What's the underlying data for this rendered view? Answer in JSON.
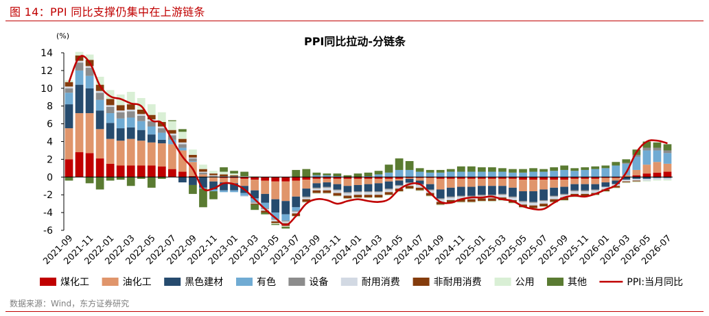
{
  "figure": {
    "label": "图 14：PPI 同比支撑仍集中在上游链条",
    "source": "数据来源：Wind，东方证券研究"
  },
  "chart_data": {
    "type": "bar",
    "title": "PPI同比拉动-分链条",
    "ylabel": "(%)",
    "ylim": [
      -6,
      14
    ],
    "yticks": [
      -6,
      -4,
      -2,
      0,
      2,
      4,
      6,
      8,
      10,
      12,
      14
    ],
    "grid": false,
    "legend_position": "bottom",
    "stacked": true,
    "categories": [
      "2021-09",
      "2021-10",
      "2021-11",
      "2021-12",
      "2022-01",
      "2022-02",
      "2022-03",
      "2022-04",
      "2022-05",
      "2022-06",
      "2022-07",
      "2022-08",
      "2022-09",
      "2022-10",
      "2022-11",
      "2022-12",
      "2023-01",
      "2023-02",
      "2023-03",
      "2023-04",
      "2023-05",
      "2023-06",
      "2023-07",
      "2023-08",
      "2023-09",
      "2023-10",
      "2023-11",
      "2023-12",
      "2024-01",
      "2024-02",
      "2024-03",
      "2024-04",
      "2024-05",
      "2024-06",
      "2024-07",
      "2024-08",
      "2024-09",
      "2024-10",
      "2024-11",
      "2024-12",
      "2025-01",
      "2025-02",
      "2025-03",
      "2025-04",
      "2025-05",
      "2025-06",
      "2025-07",
      "2025-08",
      "2025-09",
      "2025-10",
      "2025-11",
      "2025-12",
      "2026-01",
      "2026-02",
      "2026-03",
      "2026-04",
      "2026-05",
      "2026-06",
      "2026-07"
    ],
    "xtick_labels": [
      "2021-09",
      "2021-11",
      "2022-01",
      "2022-03",
      "2022-05",
      "2022-07",
      "2022-09",
      "2022-11",
      "2023-01",
      "2023-03",
      "2023-05",
      "2023-07",
      "2023-09",
      "2023-11",
      "2024-01",
      "2024-03",
      "2024-05",
      "2024-07",
      "2024-09",
      "2024-11",
      "2025-01",
      "2025-03",
      "2025-05",
      "2025-07",
      "2025-09",
      "2025-11",
      "2026-01",
      "2026-03",
      "2026-05",
      "2026-07"
    ],
    "colors": {
      "煤化工": "#c00000",
      "油化工": "#e0956b",
      "黑色建材": "#264b6e",
      "有色": "#70abd3",
      "设备": "#8c8c8c",
      "耐用消费": "#d2d9e3",
      "非耐用消费": "#843c0c",
      "公用": "#d9efd5",
      "其他": "#5a7b32",
      "PPI:当月同比": "#c00000"
    },
    "series": [
      {
        "name": "煤化工",
        "values": [
          2.0,
          2.8,
          2.7,
          2.1,
          1.5,
          1.3,
          1.3,
          1.3,
          1.3,
          1.2,
          0.9,
          0.6,
          0.1,
          0.0,
          0.0,
          -0.1,
          -0.1,
          -0.2,
          -0.3,
          -0.4,
          -0.5,
          -0.5,
          -0.4,
          -0.3,
          -0.2,
          -0.2,
          -0.2,
          -0.2,
          -0.2,
          -0.2,
          -0.2,
          -0.2,
          -0.2,
          -0.1,
          -0.1,
          -0.1,
          -0.2,
          -0.2,
          -0.2,
          -0.2,
          -0.2,
          -0.2,
          -0.2,
          -0.2,
          -0.3,
          -0.3,
          -0.3,
          -0.3,
          -0.3,
          -0.2,
          -0.2,
          -0.2,
          -0.1,
          -0.1,
          0.0,
          0.2,
          0.4,
          0.5,
          0.6
        ]
      },
      {
        "name": "油化工",
        "values": [
          3.5,
          4.4,
          4.5,
          3.3,
          2.8,
          2.8,
          3.0,
          2.8,
          2.6,
          2.6,
          2.8,
          2.4,
          1.6,
          0.3,
          -0.5,
          -0.5,
          -0.6,
          -0.8,
          -1.2,
          -1.5,
          -2.0,
          -2.2,
          -1.8,
          -1.0,
          -0.5,
          -0.4,
          -0.6,
          -0.8,
          -0.7,
          -0.6,
          -0.5,
          -0.3,
          -0.2,
          -0.1,
          -0.3,
          -0.7,
          -1.2,
          -1.0,
          -0.9,
          -0.9,
          -0.8,
          -0.8,
          -0.8,
          -1.0,
          -1.3,
          -1.3,
          -1.1,
          -0.9,
          -0.8,
          -0.6,
          -0.6,
          -0.6,
          -0.5,
          -0.3,
          0.2,
          0.6,
          1.0,
          1.2,
          0.9
        ]
      },
      {
        "name": "黑色建材",
        "values": [
          2.7,
          3.2,
          2.8,
          2.1,
          1.8,
          1.4,
          1.3,
          1.2,
          0.9,
          0.4,
          0.0,
          -0.6,
          -0.9,
          -1.2,
          -0.9,
          -0.9,
          -0.8,
          -0.8,
          -0.9,
          -1.0,
          -1.5,
          -1.5,
          -1.2,
          -0.9,
          -0.5,
          -0.5,
          -0.6,
          -0.7,
          -0.7,
          -0.8,
          -0.9,
          -0.8,
          -0.5,
          -0.4,
          -0.4,
          -0.6,
          -1.0,
          -1.0,
          -1.0,
          -1.0,
          -1.0,
          -1.0,
          -0.9,
          -1.0,
          -1.1,
          -1.2,
          -1.2,
          -0.9,
          -0.8,
          -0.7,
          -0.7,
          -0.6,
          -0.5,
          -0.4,
          -0.3,
          -0.2,
          -0.2,
          -0.1,
          -0.1
        ]
      },
      {
        "name": "有色",
        "values": [
          1.3,
          1.6,
          1.4,
          1.2,
          1.1,
          1.1,
          1.1,
          1.0,
          0.9,
          0.8,
          0.5,
          0.3,
          0.1,
          -0.1,
          -0.2,
          -0.2,
          -0.2,
          -0.3,
          -0.4,
          -0.6,
          -0.7,
          -0.7,
          -0.4,
          0.0,
          0.2,
          0.2,
          0.1,
          0.0,
          0.0,
          0.1,
          0.3,
          0.5,
          0.8,
          0.8,
          0.6,
          0.5,
          0.5,
          0.6,
          0.6,
          0.6,
          0.6,
          0.6,
          0.6,
          0.5,
          0.5,
          0.6,
          0.6,
          0.7,
          0.8,
          0.7,
          0.8,
          0.9,
          1.0,
          1.3,
          1.3,
          1.5,
          1.6,
          1.3,
          1.2
        ]
      },
      {
        "name": "设备",
        "values": [
          0.5,
          0.9,
          0.9,
          0.8,
          0.7,
          0.7,
          0.7,
          0.6,
          0.6,
          0.5,
          0.5,
          0.4,
          0.3,
          0.2,
          0.1,
          0.1,
          0.1,
          0.0,
          -0.1,
          -0.1,
          -0.1,
          -0.1,
          -0.1,
          -0.1,
          -0.1,
          -0.1,
          -0.1,
          -0.1,
          -0.1,
          -0.1,
          -0.1,
          -0.1,
          -0.1,
          -0.1,
          -0.1,
          -0.1,
          -0.1,
          -0.1,
          -0.1,
          -0.1,
          -0.1,
          -0.1,
          -0.1,
          -0.1,
          -0.1,
          -0.1,
          -0.1,
          -0.1,
          -0.1,
          -0.1,
          -0.1,
          -0.1,
          0.0,
          0.0,
          0.1,
          0.2,
          0.3,
          0.3,
          0.3
        ]
      },
      {
        "name": "耐用消费",
        "values": [
          0.2,
          0.2,
          0.2,
          0.2,
          0.2,
          0.2,
          0.2,
          0.2,
          0.2,
          0.2,
          0.2,
          0.2,
          0.1,
          0.1,
          0.1,
          0.0,
          0.0,
          -0.1,
          -0.1,
          -0.2,
          -0.2,
          -0.2,
          -0.2,
          -0.2,
          -0.2,
          -0.3,
          -0.3,
          -0.3,
          -0.3,
          -0.3,
          -0.3,
          -0.3,
          -0.3,
          -0.3,
          -0.3,
          -0.3,
          -0.3,
          -0.3,
          -0.3,
          -0.3,
          -0.3,
          -0.3,
          -0.3,
          -0.3,
          -0.3,
          -0.3,
          -0.3,
          -0.3,
          -0.3,
          -0.3,
          -0.3,
          -0.3,
          -0.3,
          -0.2,
          -0.2,
          -0.2,
          -0.2,
          -0.2,
          -0.2
        ]
      },
      {
        "name": "非耐用消费",
        "values": [
          0.5,
          0.6,
          0.7,
          0.7,
          0.7,
          0.6,
          0.6,
          0.5,
          0.5,
          0.5,
          0.4,
          0.4,
          0.3,
          0.3,
          0.2,
          0.2,
          0.1,
          0.0,
          -0.1,
          -0.2,
          -0.2,
          -0.3,
          -0.3,
          -0.3,
          -0.3,
          -0.3,
          -0.3,
          -0.3,
          -0.3,
          -0.3,
          -0.3,
          -0.3,
          -0.3,
          -0.3,
          -0.3,
          -0.3,
          -0.3,
          -0.3,
          -0.3,
          -0.3,
          -0.3,
          -0.3,
          -0.3,
          -0.3,
          -0.3,
          -0.3,
          -0.3,
          -0.3,
          -0.3,
          -0.3,
          -0.2,
          -0.2,
          -0.2,
          -0.2,
          -0.1,
          -0.1,
          0.0,
          0.0,
          0.0
        ]
      },
      {
        "name": "公用",
        "values": [
          0.2,
          0.4,
          0.6,
          0.9,
          1.0,
          1.2,
          1.4,
          1.3,
          1.2,
          1.1,
          1.0,
          0.8,
          0.6,
          0.5,
          0.3,
          0.3,
          0.2,
          0.1,
          0.1,
          0.0,
          -0.1,
          -0.1,
          -0.1,
          -0.1,
          -0.1,
          -0.1,
          -0.1,
          -0.1,
          -0.1,
          -0.1,
          -0.1,
          -0.1,
          -0.1,
          -0.1,
          -0.1,
          -0.1,
          -0.1,
          -0.1,
          -0.1,
          -0.1,
          -0.1,
          -0.1,
          -0.1,
          -0.1,
          -0.1,
          -0.1,
          -0.1,
          -0.1,
          -0.1,
          -0.1,
          -0.1,
          -0.1,
          -0.1,
          -0.1,
          -0.1,
          -0.1,
          -0.1,
          -0.1,
          -0.1
        ]
      },
      {
        "name": "其他",
        "values": [
          -0.4,
          0.0,
          -0.7,
          -1.4,
          -0.4,
          -0.3,
          -1.0,
          -0.2,
          -1.2,
          -0.2,
          0.1,
          0.3,
          -1.0,
          -2.1,
          -0.9,
          0.5,
          0.3,
          0.5,
          -0.6,
          -0.2,
          -0.1,
          -0.2,
          0.8,
          0.9,
          0.3,
          0.2,
          0.3,
          0.2,
          0.4,
          0.4,
          0.4,
          0.9,
          1.3,
          1.0,
          0.4,
          0.3,
          0.3,
          0.3,
          0.6,
          0.6,
          0.5,
          0.5,
          0.4,
          0.4,
          0.4,
          0.4,
          0.3,
          0.4,
          0.5,
          0.3,
          0.3,
          0.3,
          0.3,
          0.4,
          0.4,
          0.6,
          0.7,
          0.6,
          0.7
        ]
      }
    ],
    "line": {
      "name": "PPI:当月同比",
      "values": [
        10.7,
        13.5,
        12.9,
        10.3,
        9.1,
        8.8,
        8.3,
        8.0,
        6.4,
        6.1,
        4.2,
        2.3,
        0.9,
        -1.3,
        -1.3,
        -0.7,
        -0.8,
        -1.4,
        -2.5,
        -3.6,
        -4.6,
        -5.4,
        -4.4,
        -3.0,
        -2.5,
        -2.6,
        -3.0,
        -2.7,
        -2.5,
        -2.7,
        -2.8,
        -2.5,
        -1.4,
        -0.8,
        -0.8,
        -1.8,
        -2.8,
        -2.9,
        -2.5,
        -2.3,
        -2.3,
        -2.2,
        -2.5,
        -2.7,
        -3.3,
        -3.6,
        -3.6,
        -2.9,
        -2.3,
        -2.1,
        -2.2,
        -1.9,
        -1.4,
        -0.9,
        0.5,
        2.8,
        4.0,
        4.1,
        3.8
      ]
    }
  }
}
